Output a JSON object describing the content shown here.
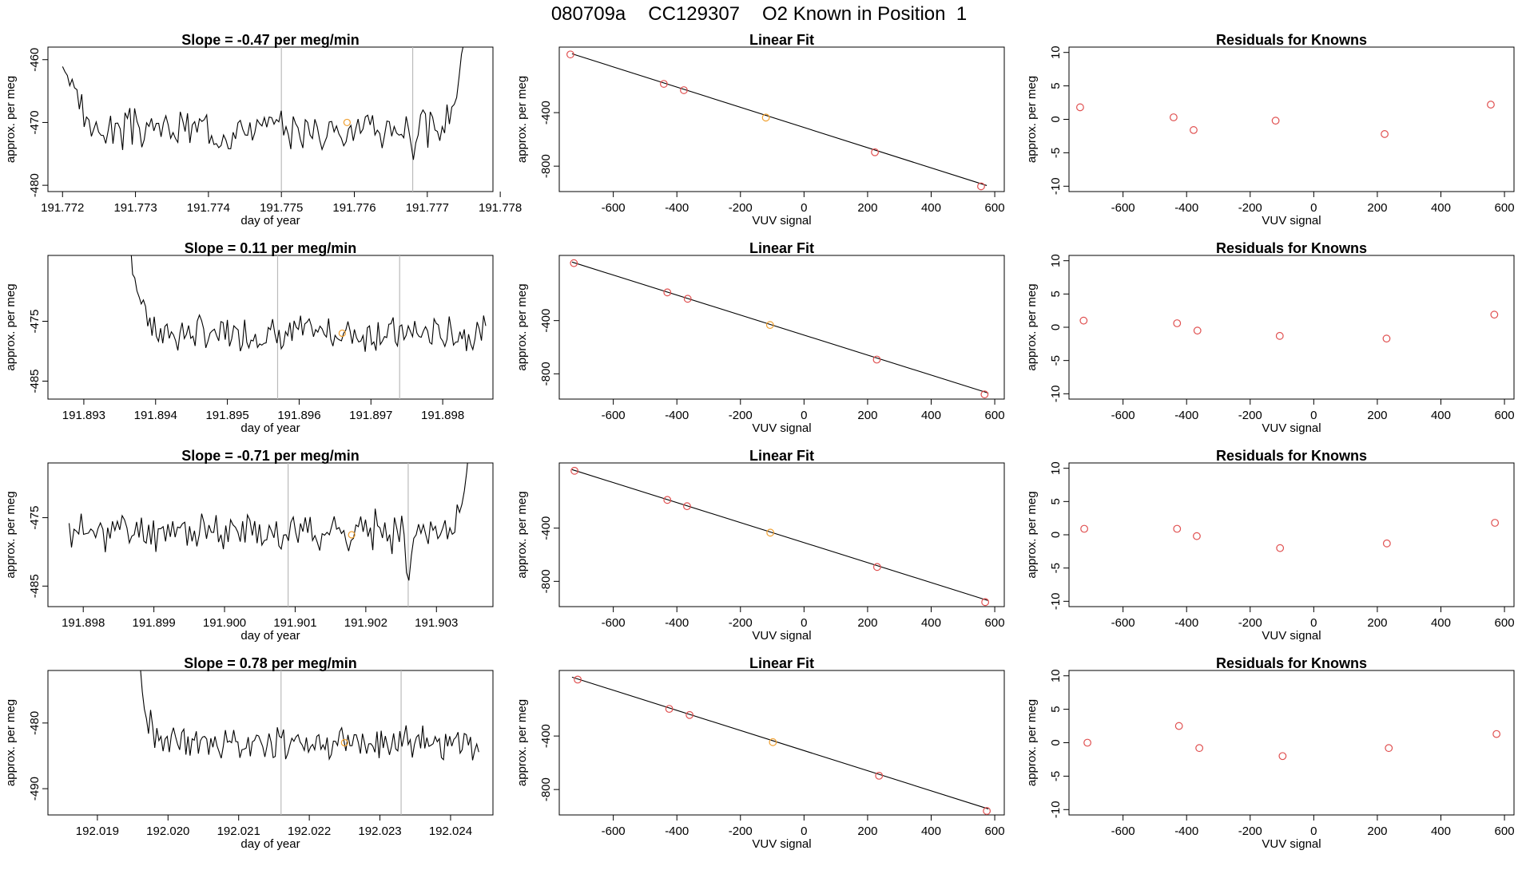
{
  "title": {
    "run_id": "080709a",
    "cylinder": "CC129307",
    "description": "O2 Known in Position  1"
  },
  "colors": {
    "trace": "#000000",
    "grid_line": "#bbbbbb",
    "fit_line": "#000000",
    "known_point": "#e05050",
    "unknown_point": "#f0a030"
  },
  "chart_data": [
    {
      "type": "line",
      "title": "Slope =  -0.47  per meg/min",
      "xlabel": "day of year",
      "ylabel": "approx. per meg",
      "xlim": [
        191.7718,
        191.7779
      ],
      "ylim": [
        -481,
        -458
      ],
      "xticks": [
        191.772,
        191.773,
        191.774,
        191.775,
        191.776,
        191.777,
        191.778
      ],
      "xtick_labels": [
        "191.772",
        "191.773",
        "191.774",
        "191.775",
        "191.776",
        "191.777",
        "191.778"
      ],
      "yticks": [
        -480,
        -470,
        -460
      ],
      "ytick_labels": [
        "-480",
        "-470",
        "-460"
      ],
      "vlines": [
        191.775,
        191.7768
      ],
      "marker": {
        "x": 191.7759,
        "y": -470
      },
      "series_start": 191.772,
      "series_end": 191.7776,
      "base": -471,
      "noise": 2.2,
      "seed": 3,
      "start_shape": "high",
      "end_shape": "spike-up",
      "dips": [
        {
          "x": 191.7768,
          "depth": -4
        }
      ]
    },
    {
      "type": "line",
      "title": "Slope =  0.11  per meg/min",
      "xlabel": "day of year",
      "ylabel": "approx. per meg",
      "xlim": [
        191.8925,
        191.8987
      ],
      "ylim": [
        -488,
        -464
      ],
      "xticks": [
        191.893,
        191.894,
        191.895,
        191.896,
        191.897,
        191.898
      ],
      "xtick_labels": [
        "191.893",
        "191.894",
        "191.895",
        "191.896",
        "191.897",
        "191.898"
      ],
      "yticks": [
        -485,
        -475
      ],
      "ytick_labels": [
        "-485",
        "-475"
      ],
      "vlines": [
        191.8957,
        191.8974
      ],
      "marker": {
        "x": 191.8966,
        "y": -477
      },
      "series_start": 191.8935,
      "series_end": 191.8986,
      "base": -477,
      "noise": 2.0,
      "seed": 7,
      "start_shape": "decay",
      "end_shape": "flat",
      "dips": []
    },
    {
      "type": "line",
      "title": "Slope =  -0.71  per meg/min",
      "xlabel": "day of year",
      "ylabel": "approx. per meg",
      "xlim": [
        191.8975,
        191.9038
      ],
      "ylim": [
        -488,
        -467
      ],
      "xticks": [
        191.898,
        191.899,
        191.9,
        191.901,
        191.902,
        191.903
      ],
      "xtick_labels": [
        "191.898",
        "191.899",
        "191.900",
        "191.901",
        "191.902",
        "191.903"
      ],
      "yticks": [
        -485,
        -475
      ],
      "ytick_labels": [
        "-485",
        "-475"
      ],
      "vlines": [
        191.9009,
        191.9026
      ],
      "marker": {
        "x": 191.9018,
        "y": -477.5
      },
      "series_start": 191.8978,
      "series_end": 191.9036,
      "base": -477,
      "noise": 2.0,
      "seed": 11,
      "start_shape": "flat",
      "end_shape": "spike-up",
      "dips": [
        {
          "x": 191.9026,
          "depth": -8
        }
      ]
    },
    {
      "type": "line",
      "title": "Slope =  0.78  per meg/min",
      "xlabel": "day of year",
      "ylabel": "approx. per meg",
      "xlim": [
        192.0183,
        192.0246
      ],
      "ylim": [
        -494,
        -472
      ],
      "xticks": [
        192.019,
        192.02,
        192.021,
        192.022,
        192.023,
        192.024
      ],
      "xtick_labels": [
        "192.019",
        "192.020",
        "192.021",
        "192.022",
        "192.023",
        "192.024"
      ],
      "yticks": [
        -490,
        -480
      ],
      "ytick_labels": [
        "-490",
        "-480"
      ],
      "vlines": [
        192.0216,
        192.0233
      ],
      "marker": {
        "x": 192.0225,
        "y": -483
      },
      "series_start": 192.0194,
      "series_end": 192.0244,
      "base": -483,
      "noise": 1.8,
      "seed": 19,
      "start_shape": "decay",
      "end_shape": "flat",
      "dips": [
        {
          "x": 192.0223,
          "depth": -4
        }
      ]
    },
    {
      "type": "scatter",
      "title": "Linear Fit",
      "xlabel": "VUV signal",
      "ylabel": "approx. per meg",
      "xlim": [
        -770,
        630
      ],
      "ylim": [
        -990,
        90
      ],
      "xticks": [
        -600,
        -400,
        -200,
        0,
        200,
        400,
        600
      ],
      "xtick_labels": [
        "-600",
        "-400",
        "-200",
        "0",
        "200",
        "400",
        "600"
      ],
      "yticks": [
        -800,
        -400
      ],
      "ytick_labels": [
        "-800",
        "-400"
      ],
      "fit": {
        "x": [
          -730,
          575
        ],
        "y": [
          40,
          -945
        ]
      },
      "points": [
        {
          "x": -735,
          "y": 35
        },
        {
          "x": -441,
          "y": -185
        },
        {
          "x": -378,
          "y": -232
        },
        {
          "x": -120,
          "y": -437,
          "role": "unknown"
        },
        {
          "x": 223,
          "y": -696
        },
        {
          "x": 557,
          "y": -951
        }
      ]
    },
    {
      "type": "scatter",
      "title": "Linear Fit",
      "xlabel": "VUV signal",
      "ylabel": "approx. per meg",
      "xlim": [
        -770,
        630
      ],
      "ylim": [
        -990,
        90
      ],
      "xticks": [
        -600,
        -400,
        -200,
        0,
        200,
        400,
        600
      ],
      "xtick_labels": [
        "-600",
        "-400",
        "-200",
        "0",
        "200",
        "400",
        "600"
      ],
      "yticks": [
        -800,
        -400
      ],
      "ytick_labels": [
        "-800",
        "-400"
      ],
      "fit": {
        "x": [
          -730,
          580
        ],
        "y": [
          40,
          -945
        ]
      },
      "points": [
        {
          "x": -724,
          "y": 32
        },
        {
          "x": -430,
          "y": -188
        },
        {
          "x": -366,
          "y": -236
        },
        {
          "x": -107,
          "y": -433,
          "role": "unknown"
        },
        {
          "x": 229,
          "y": -693
        },
        {
          "x": 568,
          "y": -955
        }
      ]
    },
    {
      "type": "scatter",
      "title": "Linear Fit",
      "xlabel": "VUV signal",
      "ylabel": "approx. per meg",
      "xlim": [
        -770,
        630
      ],
      "ylim": [
        -990,
        90
      ],
      "xticks": [
        -600,
        -400,
        -200,
        0,
        200,
        400,
        600
      ],
      "xtick_labels": [
        "-600",
        "-400",
        "-200",
        "0",
        "200",
        "400",
        "600"
      ],
      "yticks": [
        -800,
        -400
      ],
      "ytick_labels": [
        "-800",
        "-400"
      ],
      "fit": {
        "x": [
          -730,
          580
        ],
        "y": [
          40,
          -945
        ]
      },
      "points": [
        {
          "x": -722,
          "y": 31
        },
        {
          "x": -430,
          "y": -188
        },
        {
          "x": -368,
          "y": -235
        },
        {
          "x": -106,
          "y": -434,
          "role": "unknown"
        },
        {
          "x": 230,
          "y": -692
        },
        {
          "x": 570,
          "y": -956
        }
      ]
    },
    {
      "type": "scatter",
      "title": "Linear Fit",
      "xlabel": "VUV signal",
      "ylabel": "approx. per meg",
      "xlim": [
        -770,
        630
      ],
      "ylim": [
        -990,
        90
      ],
      "xticks": [
        -600,
        -400,
        -200,
        0,
        200,
        400,
        600
      ],
      "xtick_labels": [
        "-600",
        "-400",
        "-200",
        "0",
        "200",
        "400",
        "600"
      ],
      "yticks": [
        -800,
        -400
      ],
      "ytick_labels": [
        "-800",
        "-400"
      ],
      "fit": {
        "x": [
          -730,
          580
        ],
        "y": [
          40,
          -945
        ]
      },
      "points": [
        {
          "x": -712,
          "y": 22
        },
        {
          "x": -424,
          "y": -197
        },
        {
          "x": -360,
          "y": -243
        },
        {
          "x": -98,
          "y": -446,
          "role": "unknown"
        },
        {
          "x": 236,
          "y": -697
        },
        {
          "x": 575,
          "y": -960
        }
      ]
    },
    {
      "type": "scatter",
      "title": "Residuals for Knowns",
      "xlabel": "VUV signal",
      "ylabel": "approx. per meg",
      "xlim": [
        -770,
        630
      ],
      "ylim": [
        -10.8,
        10.8
      ],
      "xticks": [
        -600,
        -400,
        -200,
        0,
        200,
        400,
        600
      ],
      "xtick_labels": [
        "-600",
        "-400",
        "-200",
        "0",
        "200",
        "400",
        "600"
      ],
      "yticks": [
        -10,
        -5,
        0,
        5,
        10
      ],
      "ytick_labels": [
        "-10",
        "-5",
        "0",
        "5",
        "10"
      ],
      "points": [
        {
          "x": -735,
          "y": 1.8
        },
        {
          "x": -441,
          "y": 0.3
        },
        {
          "x": -378,
          "y": -1.6
        },
        {
          "x": -120,
          "y": -0.2
        },
        {
          "x": 223,
          "y": -2.2
        },
        {
          "x": 557,
          "y": 2.2
        }
      ]
    },
    {
      "type": "scatter",
      "title": "Residuals for Knowns",
      "xlabel": "VUV signal",
      "ylabel": "approx. per meg",
      "xlim": [
        -770,
        630
      ],
      "ylim": [
        -10.8,
        10.8
      ],
      "xticks": [
        -600,
        -400,
        -200,
        0,
        200,
        400,
        600
      ],
      "xtick_labels": [
        "-600",
        "-400",
        "-200",
        "0",
        "200",
        "400",
        "600"
      ],
      "yticks": [
        -10,
        -5,
        0,
        5,
        10
      ],
      "ytick_labels": [
        "-10",
        "-5",
        "0",
        "5",
        "10"
      ],
      "points": [
        {
          "x": -724,
          "y": 1.0
        },
        {
          "x": -430,
          "y": 0.6
        },
        {
          "x": -366,
          "y": -0.5
        },
        {
          "x": -107,
          "y": -1.3
        },
        {
          "x": 229,
          "y": -1.7
        },
        {
          "x": 568,
          "y": 1.9
        }
      ]
    },
    {
      "type": "scatter",
      "title": "Residuals for Knowns",
      "xlabel": "VUV signal",
      "ylabel": "approx. per meg",
      "xlim": [
        -770,
        630
      ],
      "ylim": [
        -10.8,
        10.8
      ],
      "xticks": [
        -600,
        -400,
        -200,
        0,
        200,
        400,
        600
      ],
      "xtick_labels": [
        "-600",
        "-400",
        "-200",
        "0",
        "200",
        "400",
        "600"
      ],
      "yticks": [
        -10,
        -5,
        0,
        5,
        10
      ],
      "ytick_labels": [
        "-10",
        "-5",
        "0",
        "5",
        "10"
      ],
      "points": [
        {
          "x": -722,
          "y": 0.9
        },
        {
          "x": -430,
          "y": 0.9
        },
        {
          "x": -368,
          "y": -0.2
        },
        {
          "x": -106,
          "y": -2.0
        },
        {
          "x": 230,
          "y": -1.3
        },
        {
          "x": 570,
          "y": 1.8
        }
      ]
    },
    {
      "type": "scatter",
      "title": "Residuals for Knowns",
      "xlabel": "VUV signal",
      "ylabel": "approx. per meg",
      "xlim": [
        -770,
        630
      ],
      "ylim": [
        -10.8,
        10.8
      ],
      "xticks": [
        -600,
        -400,
        -200,
        0,
        200,
        400,
        600
      ],
      "xtick_labels": [
        "-600",
        "-400",
        "-200",
        "0",
        "200",
        "400",
        "600"
      ],
      "yticks": [
        -10,
        -5,
        0,
        5,
        10
      ],
      "ytick_labels": [
        "-10",
        "-5",
        "0",
        "5",
        "10"
      ],
      "points": [
        {
          "x": -712,
          "y": 0.0
        },
        {
          "x": -424,
          "y": 2.5
        },
        {
          "x": -360,
          "y": -0.8
        },
        {
          "x": -98,
          "y": -2.0
        },
        {
          "x": 236,
          "y": -0.8
        },
        {
          "x": 575,
          "y": 1.3
        }
      ]
    }
  ]
}
